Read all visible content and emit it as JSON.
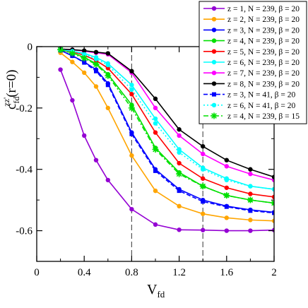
{
  "chart_data": {
    "type": "line",
    "xlabel": "V",
    "xlabel_sub": "fd",
    "ylabel": "c",
    "ylabel_sub": "fd",
    "ylabel_sup": "zz'",
    "ylabel_suffix": "(r=0)",
    "xlim": [
      0,
      2
    ],
    "ylim": [
      -0.7,
      0
    ],
    "xticks": [
      0,
      0.4,
      0.8,
      1.2,
      1.6,
      2
    ],
    "xtick_labels": [
      "0",
      "0.4",
      "0.8",
      "1.2",
      "1.6",
      "2"
    ],
    "yticks": [
      0,
      -0.2,
      -0.4,
      -0.6
    ],
    "ytick_labels": [
      "0",
      "-0.2",
      "-0.4",
      "-0.6"
    ],
    "vlines": [
      0.8,
      1.4
    ],
    "legend_position": "top-right",
    "series": [
      {
        "name": "z = 1, N = 239, β = 20",
        "color": "#9400d3",
        "dash": "solid",
        "marker": "circle",
        "x": [
          0.2,
          0.3,
          0.4,
          0.5,
          0.6,
          0.8,
          1.0,
          1.2,
          1.4,
          1.6,
          1.8,
          2.0
        ],
        "y": [
          -0.075,
          -0.175,
          -0.29,
          -0.37,
          -0.435,
          -0.53,
          -0.58,
          -0.597,
          -0.598,
          -0.6,
          -0.6,
          -0.598
        ]
      },
      {
        "name": "z = 2, N = 239, β = 20",
        "color": "#ffa500",
        "dash": "solid",
        "marker": "circle",
        "x": [
          0.2,
          0.3,
          0.4,
          0.5,
          0.6,
          0.8,
          1.0,
          1.2,
          1.4,
          1.6,
          1.8,
          2.0
        ],
        "y": [
          -0.02,
          -0.05,
          -0.085,
          -0.13,
          -0.2,
          -0.355,
          -0.47,
          -0.52,
          -0.545,
          -0.558,
          -0.565,
          -0.568
        ]
      },
      {
        "name": "z = 3, N = 239, β = 20",
        "color": "#0000ff",
        "dash": "solid",
        "marker": "circle",
        "x": [
          0.2,
          0.3,
          0.4,
          0.5,
          0.6,
          0.8,
          1.0,
          1.2,
          1.4,
          1.6,
          1.8,
          2.0
        ],
        "y": [
          -0.012,
          -0.03,
          -0.05,
          -0.075,
          -0.12,
          -0.28,
          -0.4,
          -0.465,
          -0.5,
          -0.52,
          -0.532,
          -0.54
        ]
      },
      {
        "name": "z = 4, N = 239, β = 20",
        "color": "#00e000",
        "dash": "solid",
        "marker": "circle",
        "x": [
          0.2,
          0.3,
          0.4,
          0.5,
          0.6,
          0.8,
          1.0,
          1.2,
          1.4,
          1.6,
          1.8,
          2.0
        ],
        "y": [
          -0.01,
          -0.02,
          -0.035,
          -0.055,
          -0.09,
          -0.19,
          -0.33,
          -0.41,
          -0.455,
          -0.485,
          -0.5,
          -0.51
        ]
      },
      {
        "name": "z = 5, N = 239, β = 20",
        "color": "#ff0000",
        "dash": "solid",
        "marker": "circle",
        "x": [
          0.2,
          0.3,
          0.4,
          0.5,
          0.6,
          0.8,
          1.0,
          1.2,
          1.4,
          1.6,
          1.8,
          2.0
        ],
        "y": [
          -0.01,
          -0.017,
          -0.028,
          -0.045,
          -0.07,
          -0.155,
          -0.28,
          -0.38,
          -0.43,
          -0.46,
          -0.48,
          -0.49
        ]
      },
      {
        "name": "z = 6, N = 239, β = 20",
        "color": "#00ffff",
        "dash": "solid",
        "marker": "circle",
        "x": [
          0.2,
          0.3,
          0.4,
          0.5,
          0.6,
          0.8,
          1.0,
          1.2,
          1.4,
          1.6,
          1.8,
          2.0
        ],
        "y": [
          -0.01,
          -0.015,
          -0.022,
          -0.035,
          -0.055,
          -0.125,
          -0.235,
          -0.335,
          -0.395,
          -0.43,
          -0.455,
          -0.465
        ]
      },
      {
        "name": "z = 7, N = 239, β = 20",
        "color": "#ff00ff",
        "dash": "solid",
        "marker": "circle",
        "x": [
          0.2,
          0.3,
          0.4,
          0.5,
          0.6,
          0.8,
          1.0,
          1.2,
          1.4,
          1.6,
          1.8,
          2.0
        ],
        "y": [
          -0.008,
          -0.01,
          -0.015,
          -0.02,
          -0.025,
          -0.085,
          -0.2,
          -0.29,
          -0.35,
          -0.39,
          -0.415,
          -0.435
        ]
      },
      {
        "name": "z = 8, N = 239, β = 20",
        "color": "#000000",
        "dash": "solid",
        "marker": "circle",
        "x": [
          0.2,
          0.3,
          0.4,
          0.5,
          0.6,
          0.8,
          1.0,
          1.2,
          1.4,
          1.6,
          1.8,
          2.0
        ],
        "y": [
          -0.008,
          -0.01,
          -0.013,
          -0.018,
          -0.022,
          -0.08,
          -0.17,
          -0.27,
          -0.325,
          -0.37,
          -0.4,
          -0.425
        ]
      },
      {
        "name": "z = 3, N = 41,  β = 20",
        "color": "#0000ff",
        "dash": "dash",
        "marker": "square",
        "x": [
          0.2,
          0.3,
          0.4,
          0.5,
          0.6,
          0.8,
          1.0,
          1.2,
          1.4,
          1.6,
          1.8,
          2.0
        ],
        "y": [
          -0.012,
          -0.03,
          -0.052,
          -0.08,
          -0.125,
          -0.285,
          -0.405,
          -0.47,
          -0.505,
          -0.522,
          -0.535,
          -0.542
        ]
      },
      {
        "name": "z = 6, N = 41,  β = 20",
        "color": "#00ffff",
        "dash": "dot",
        "marker": "circle",
        "x": [
          0.2,
          0.3,
          0.4,
          0.5,
          0.6,
          0.8,
          1.0,
          1.2,
          1.4,
          1.6,
          1.8,
          2.0
        ],
        "y": [
          -0.01,
          -0.015,
          -0.025,
          -0.04,
          -0.06,
          -0.14,
          -0.25,
          -0.345,
          -0.4,
          -0.435,
          -0.455,
          -0.465
        ]
      },
      {
        "name": "z = 4, N = 239, β = 15",
        "color": "#00e000",
        "dash": "dashdot",
        "marker": "star",
        "x": [
          0.2,
          0.3,
          0.4,
          0.5,
          0.6,
          0.8,
          1.0,
          1.2,
          1.4,
          1.6,
          1.8,
          2.0
        ],
        "y": [
          -0.01,
          -0.022,
          -0.038,
          -0.058,
          -0.095,
          -0.2,
          -0.335,
          -0.415,
          -0.455,
          -0.485,
          -0.5,
          -0.51
        ]
      }
    ]
  }
}
